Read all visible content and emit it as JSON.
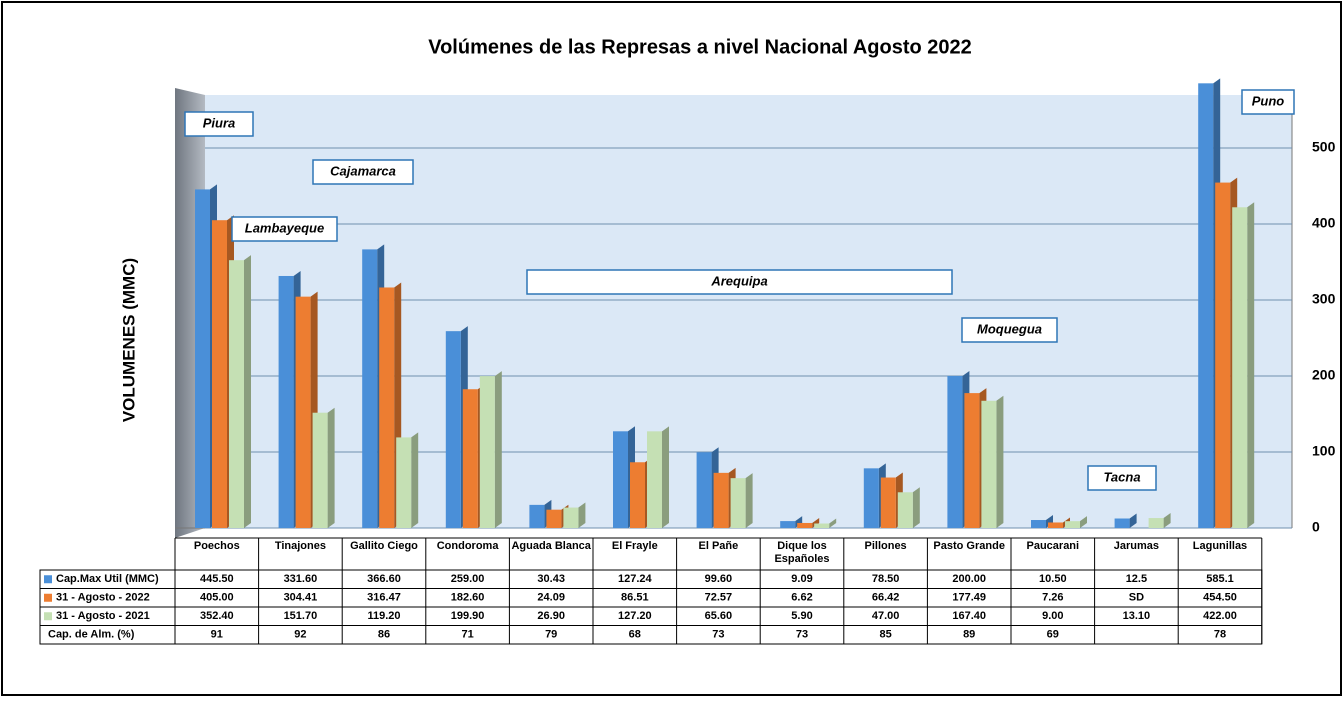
{
  "chart_data": {
    "type": "bar",
    "title": "Volúmenes de las Represas a nivel Nacional Agosto 2022",
    "y_label": "VOLUMENES (MMC)",
    "categories": [
      "Poechos",
      "Tinajones",
      "Gallito Ciego",
      "Condoroma",
      "Aguada Blanca",
      "El Frayle",
      "El Pañe",
      "Dique los Españoles",
      "Pillones",
      "Pasto Grande",
      "Paucarani",
      "Jarumas",
      "Lagunillas"
    ],
    "series": [
      {
        "name": "Cap.Max Util (MMC)",
        "color": "#4a8fd8",
        "values": [
          445.5,
          331.6,
          366.6,
          259,
          30.43,
          127.24,
          99.6,
          9.09,
          78.5,
          200,
          10.5,
          12.5,
          585.1
        ],
        "value_labels": [
          "445.50",
          "331.60",
          "366.60",
          "259.00",
          "30.43",
          "127.24",
          "99.60",
          "9.09",
          "78.50",
          "200.00",
          "10.50",
          "12.5",
          "585.1"
        ]
      },
      {
        "name": "31 - Agosto - 2022",
        "color": "#ed7d31",
        "values": [
          405,
          304.41,
          316.47,
          182.6,
          24.09,
          86.51,
          72.57,
          6.62,
          66.42,
          177.49,
          7.26,
          null,
          454.5
        ],
        "value_labels": [
          "405.00",
          "304.41",
          "316.47",
          "182.60",
          "24.09",
          "86.51",
          "72.57",
          "6.62",
          "66.42",
          "177.49",
          "7.26",
          "SD",
          "454.50"
        ]
      },
      {
        "name": "31 - Agosto - 2021",
        "color": "#c5e0b4",
        "values": [
          352.4,
          151.7,
          119.2,
          199.9,
          26.9,
          127.2,
          65.6,
          5.9,
          47,
          167.4,
          9,
          13.1,
          422
        ],
        "value_labels": [
          "352.40",
          "151.70",
          "119.20",
          "199.90",
          "26.90",
          "127.20",
          "65.60",
          "5.90",
          "47.00",
          "167.40",
          "9.00",
          "13.10",
          "422.00"
        ]
      }
    ],
    "table_rows": [
      {
        "name": "Cap. de Alm. (%)",
        "values": [
          91,
          92,
          86,
          71,
          79,
          68,
          73,
          73,
          85,
          89,
          69,
          null,
          78
        ]
      }
    ],
    "annotations": [
      "Piura",
      "Cajamarca",
      "Lambayeque",
      "Arequipa",
      "Moquegua",
      "Tacna",
      "Puno"
    ],
    "ylim": [
      0,
      600
    ],
    "yticks": [
      0,
      100,
      200,
      300,
      400,
      500
    ],
    "grid": true
  }
}
